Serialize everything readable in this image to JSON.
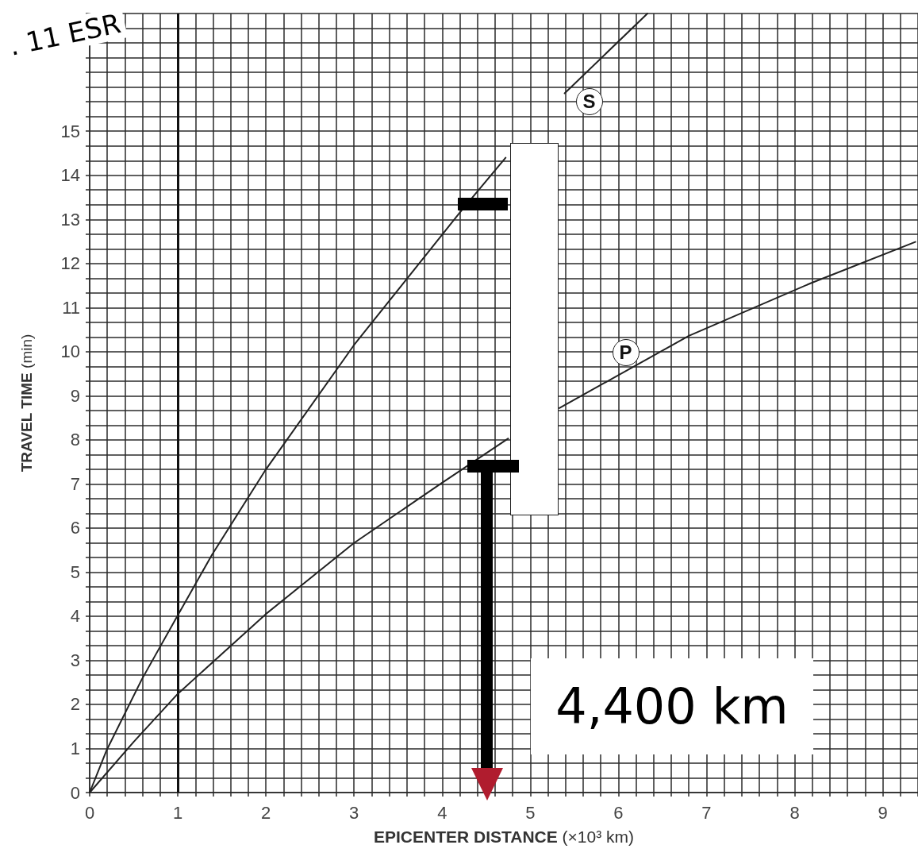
{
  "chart_data": {
    "type": "line",
    "xlabel": "EPICENTER DISTANCE (×10³ km)",
    "ylabel": "TRAVEL TIME (min)",
    "series": [
      {
        "name": "S",
        "color": "#222222",
        "x": [
          0,
          0.19,
          0.59,
          1,
          1.39,
          2,
          3,
          4.19,
          4.72,
          5.0,
          5.39,
          6.33
        ],
        "values": [
          0,
          0.95,
          2.56,
          4.02,
          5.4,
          7.33,
          10.15,
          13.13,
          14.4,
          null,
          15.86,
          17.67
        ]
      },
      {
        "name": "P",
        "color": "#222222",
        "x": [
          0,
          0.5,
          1,
          2,
          3,
          3.98,
          4.75,
          5.0,
          5.33,
          6.8,
          8.18,
          9.37
        ],
        "values": [
          0,
          1.15,
          2.24,
          4.05,
          5.66,
          7.0,
          8.03,
          null,
          8.72,
          10.36,
          11.55,
          12.49
        ]
      }
    ],
    "xlim": [
      0,
      9.4
    ],
    "xticks": [
      0,
      {
        "value": 0.2,
        "label": null
      },
      {
        "value": 0.4,
        "label": null
      },
      {
        "value": 0.6,
        "label": null
      },
      {
        "value": 0.8,
        "label": null
      },
      1,
      {
        "value": 1.2,
        "label": null
      },
      {
        "value": 1.4,
        "label": null
      },
      {
        "value": 1.6,
        "label": null
      },
      {
        "value": 1.8,
        "label": null
      },
      2,
      {
        "value": 2.2,
        "label": null
      },
      {
        "value": 2.4,
        "label": null
      },
      {
        "value": 2.6,
        "label": null
      },
      {
        "value": 2.8,
        "label": null
      },
      3,
      {
        "value": 3.2,
        "label": null
      },
      {
        "value": 3.4,
        "label": null
      },
      {
        "value": 3.6,
        "label": null
      },
      {
        "value": 3.8,
        "label": null
      },
      4,
      {
        "value": 4.2,
        "label": null
      },
      {
        "value": 4.4,
        "label": null
      },
      {
        "value": 4.6,
        "label": null
      },
      {
        "value": 4.8,
        "label": null
      },
      5,
      {
        "value": 5.2,
        "label": null
      },
      {
        "value": 5.4,
        "label": null
      },
      {
        "value": 5.6,
        "label": null
      },
      {
        "value": 5.8,
        "label": null
      },
      6,
      {
        "value": 6.2,
        "label": null
      },
      {
        "value": 6.4,
        "label": null
      },
      {
        "value": 6.6,
        "label": null
      },
      {
        "value": 6.8,
        "label": null
      },
      7,
      {
        "value": 7.2,
        "label": null
      },
      {
        "value": 7.4,
        "label": null
      },
      {
        "value": 7.6,
        "label": null
      },
      {
        "value": 7.8,
        "label": null
      },
      8,
      {
        "value": 8.2,
        "label": null
      },
      {
        "value": 8.4,
        "label": null
      },
      {
        "value": 8.6,
        "label": null
      },
      {
        "value": 8.8,
        "label": null
      },
      9,
      {
        "value": 9.2,
        "label": null
      },
      {
        "value": 9.4,
        "label": null
      }
    ],
    "ylim": [
      0,
      17.67
    ],
    "yticks": [
      0,
      {
        "value": 0.333,
        "label": null
      },
      {
        "value": 0.667,
        "label": null
      },
      1,
      {
        "value": 1.333,
        "label": null
      },
      {
        "value": 1.667,
        "label": null
      },
      2,
      {
        "value": 2.333,
        "label": null
      },
      {
        "value": 2.667,
        "label": null
      },
      3,
      {
        "value": 3.333,
        "label": null
      },
      {
        "value": 3.667,
        "label": null
      },
      4,
      {
        "value": 4.333,
        "label": null
      },
      {
        "value": 4.667,
        "label": null
      },
      5,
      {
        "value": 5.333,
        "label": null
      },
      {
        "value": 5.667,
        "label": null
      },
      6,
      {
        "value": 6.333,
        "label": null
      },
      {
        "value": 6.667,
        "label": null
      },
      7,
      {
        "value": 7.333,
        "label": null
      },
      {
        "value": 7.667,
        "label": null
      },
      8,
      {
        "value": 8.333,
        "label": null
      },
      {
        "value": 8.667,
        "label": null
      },
      9,
      {
        "value": 9.333,
        "label": null
      },
      {
        "value": 9.667,
        "label": null
      },
      10,
      {
        "value": 10.333,
        "label": null
      },
      {
        "value": 10.667,
        "label": null
      },
      11,
      {
        "value": 11.333,
        "label": null
      },
      {
        "value": 11.667,
        "label": null
      },
      12,
      {
        "value": 12.333,
        "label": null
      },
      {
        "value": 12.667,
        "label": null
      },
      13,
      {
        "value": 13.333,
        "label": null
      },
      {
        "value": 13.667,
        "label": null
      },
      14,
      {
        "value": 14.333,
        "label": null
      },
      {
        "value": 14.667,
        "label": null
      },
      15,
      {
        "value": 15.333,
        "label": null
      },
      {
        "value": 15.667,
        "label": null
      },
      {
        "value": 16,
        "label": null
      },
      {
        "value": 16.333,
        "label": null
      },
      {
        "value": 16.667,
        "label": null
      },
      {
        "value": 17,
        "label": null
      },
      {
        "value": 17.333,
        "label": null
      },
      {
        "value": 17.67,
        "label": null
      }
    ],
    "grid": true,
    "legend": false,
    "marker": "none",
    "line_style": "solid",
    "ref_lines": [
      {
        "axis": "x",
        "value": 1,
        "color": "#111111"
      }
    ],
    "annotations": [
      "4,400 km",
      ". 11 ESR"
    ]
  }
}
